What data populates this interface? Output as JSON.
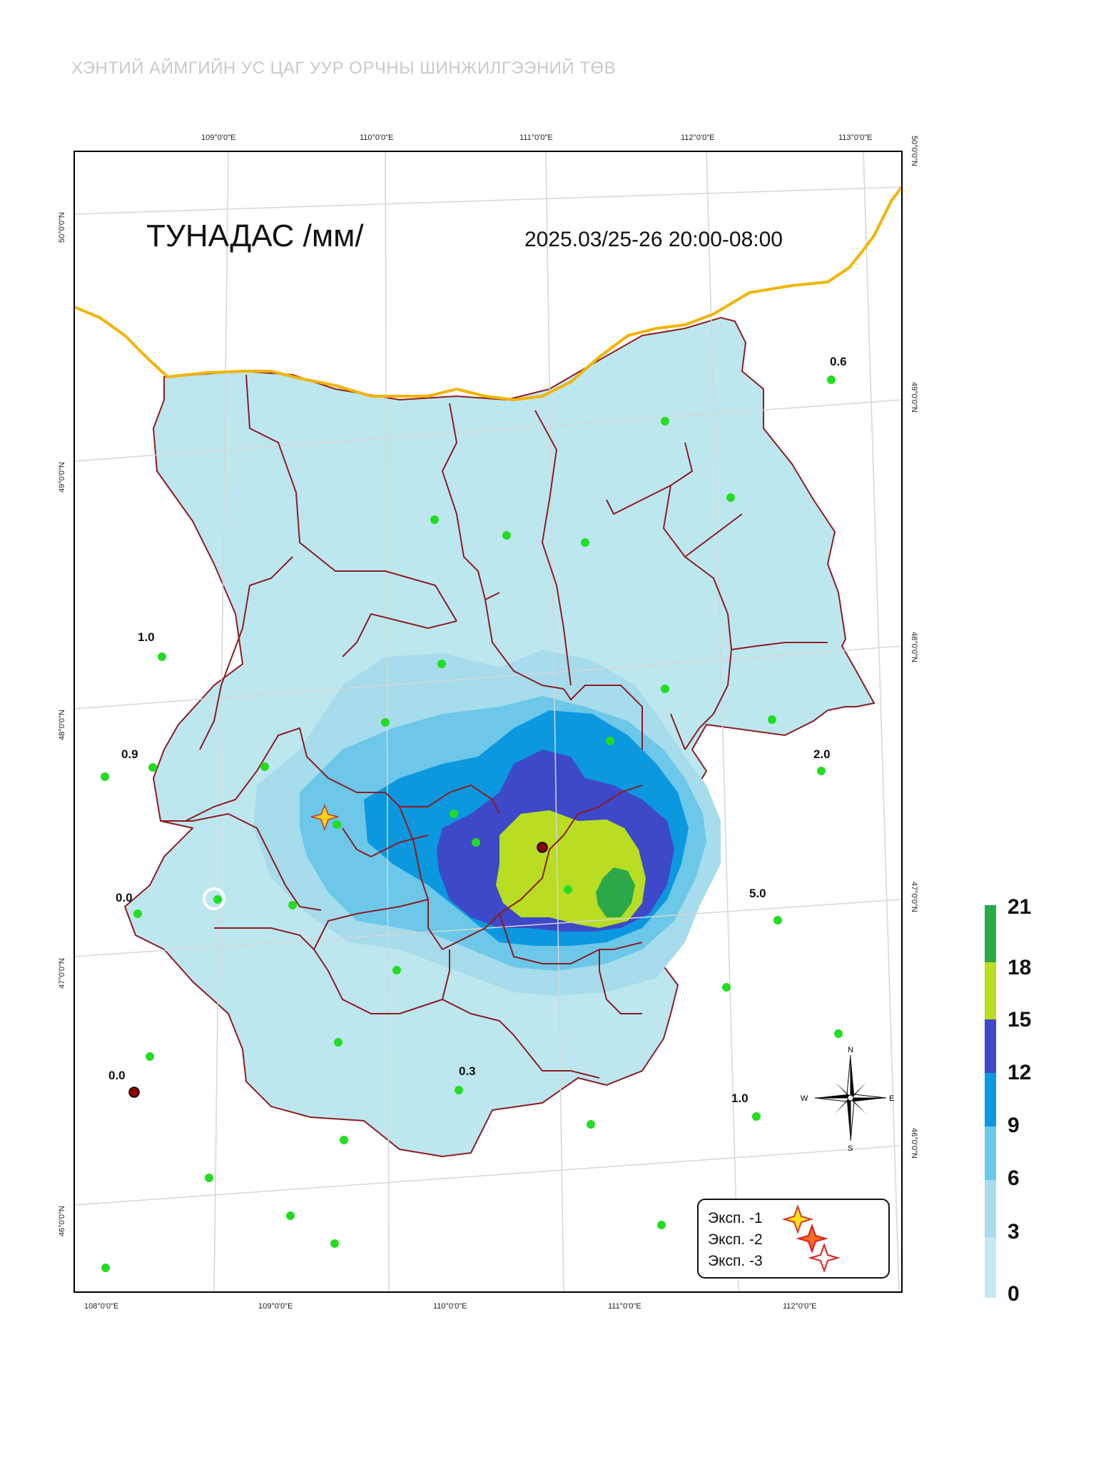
{
  "header": "ХЭНТИЙ АЙМГИЙН УС ЦАГ УУР ОРЧНЫ ШИНЖИЛГЭЭНИЙ ТӨВ",
  "map": {
    "title": "ТУНАДАС /мм/",
    "period": "2025.03/25-26 20:00-08:00",
    "top_lon_labels": [
      "109°0'0\"E",
      "110°0'0\"E",
      "111°0'0\"E",
      "112°0'0\"E",
      "113°0'0\"E"
    ],
    "bottom_lon_labels": [
      "108°0'0\"E",
      "109°0'0\"E",
      "110°0'0\"E",
      "111°0'0\"E",
      "112°0'0\"E"
    ],
    "left_lat_labels": [
      "50°0'0\"N",
      "49°0'0\"N",
      "48°0'0\"N",
      "47°0'0\"N",
      "46°0'0\"N"
    ],
    "right_lat_labels": [
      "50°0'0\"N",
      "49°0'0\"N",
      "48°0'0\"N",
      "47°0'0\"N",
      "46°0'0\"N"
    ],
    "station_values": [
      "0.6",
      "1.0",
      "0.9",
      "2.0",
      "0.0",
      "5.0",
      "0.0",
      "0.3",
      "1.0"
    ],
    "compass": {
      "n": "N",
      "s": "S",
      "e": "E",
      "w": "W"
    }
  },
  "legend": {
    "items": [
      {
        "label": "Эксп. -1",
        "icon": "star-yellow-icon"
      },
      {
        "label": "Эксп. -2",
        "icon": "star-orange-icon"
      },
      {
        "label": "Эксп. -3",
        "icon": "star-white-icon"
      }
    ]
  },
  "colorbar": {
    "ticks": [
      "21",
      "18",
      "15",
      "12",
      "9",
      "6",
      "3",
      "0"
    ],
    "colors": [
      "#2aa84a",
      "#b8dd22",
      "#3d49c8",
      "#0b98de",
      "#6cc7e8",
      "#a6dcec",
      "#c6e9ef"
    ]
  },
  "colors": {
    "province_fill": "#bde7ee",
    "border_line": "#8c1c20",
    "country_border": "#f2b400",
    "station_dot": "#22dd22"
  }
}
